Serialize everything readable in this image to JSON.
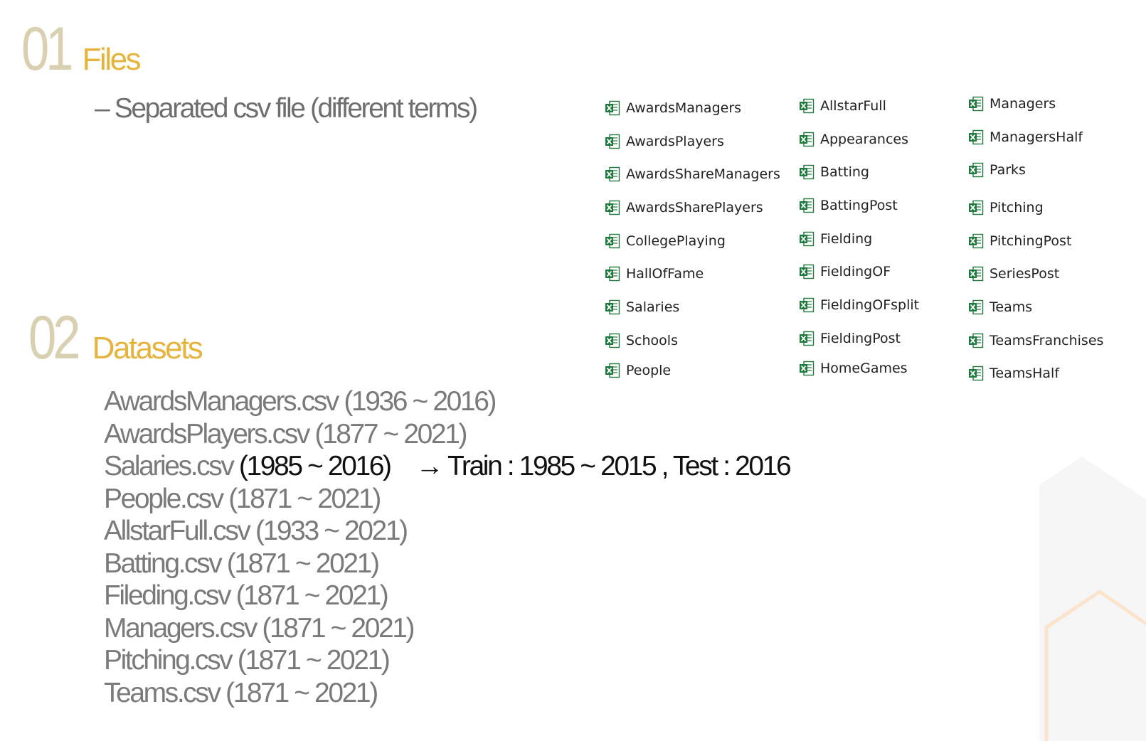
{
  "sections": [
    {
      "number": "01",
      "title": "Files"
    },
    {
      "number": "02",
      "title": "Datasets"
    }
  ],
  "files_bullet": "– Separated csv file (different terms)",
  "file_columns": [
    [
      "AwardsManagers",
      "AwardsPlayers",
      "AwardsShareManagers",
      "AwardsSharePlayers",
      "CollegePlaying",
      "HallOfFame",
      "Salaries",
      "Schools",
      "People"
    ],
    [
      "AllstarFull",
      "Appearances",
      "Batting",
      "BattingPost",
      "Fielding",
      "FieldingOF",
      "FieldingOFsplit",
      "FieldingPost",
      "HomeGames"
    ],
    [
      "Managers",
      "ManagersHalf",
      "Parks",
      "Pitching",
      "PitchingPost",
      "SeriesPost",
      "Teams",
      "TeamsFranchises",
      "TeamsHalf"
    ]
  ],
  "file_icon": "excel-file-icon",
  "datasets": [
    {
      "name": "AwardsManagers.csv",
      "range": "(1936 ~ 2016)"
    },
    {
      "name": "AwardsPlayers.csv",
      "range": "(1877 ~ 2021)"
    },
    {
      "name": "Salaries.csv",
      "range": "(1985 ~ 2016)",
      "note": "→ Train : 1985 ~ 2015 , Test : 2016"
    },
    {
      "name": "People.csv",
      "range": "(1871 ~ 2021)"
    },
    {
      "name": "AllstarFull.csv",
      "range": "(1933 ~ 2021)"
    },
    {
      "name": "Batting.csv",
      "range": "(1871 ~ 2021)"
    },
    {
      "name": "Fileding.csv",
      "range": "(1871 ~ 2021)"
    },
    {
      "name": "Managers.csv",
      "range": "(1871 ~ 2021)"
    },
    {
      "name": "Pitching.csv",
      "range": "(1871 ~ 2021)"
    },
    {
      "name": "Teams.csv",
      "range": "(1871 ~ 2021)"
    }
  ],
  "colors": {
    "section_number": "#d8d0b0",
    "section_title": "#e6b43c",
    "body_text": "#7a7a7a",
    "highlight_text": "#111111",
    "excel_green": "#1e7a3c"
  }
}
